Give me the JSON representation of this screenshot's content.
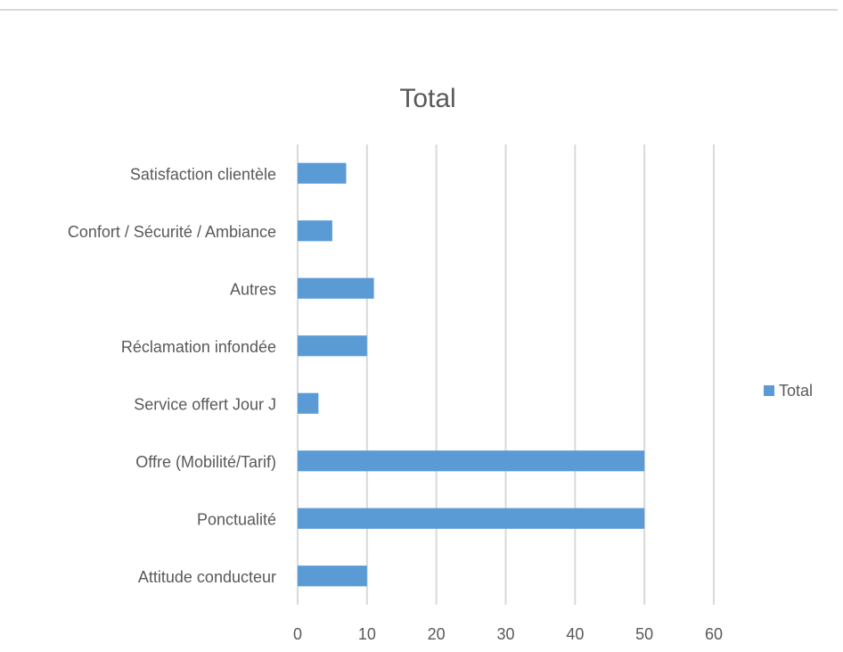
{
  "chart_data": {
    "type": "bar",
    "orientation": "horizontal",
    "title": "Total",
    "xlabel": "",
    "ylabel": "",
    "categories": [
      "Attitude conducteur",
      "Ponctualité",
      "Offre (Mobilité/Tarif)",
      "Service offert Jour J",
      "Réclamation infondée",
      "Autres",
      "Confort / Sécurité / Ambiance",
      "Satisfaction clientèle"
    ],
    "series": [
      {
        "name": "Total",
        "values": [
          10,
          50,
          50,
          3,
          10,
          11,
          5,
          7
        ],
        "color": "#5b9bd5"
      }
    ],
    "xlim": [
      0,
      60
    ],
    "x_ticks": [
      "0",
      "10",
      "20",
      "30",
      "40",
      "50",
      "60"
    ],
    "grid": "vertical",
    "legend_position": "right",
    "colors": {
      "bar": "#5b9bd5",
      "gridline": "#d9d9d9",
      "text": "#595959",
      "title": "#595959"
    }
  }
}
